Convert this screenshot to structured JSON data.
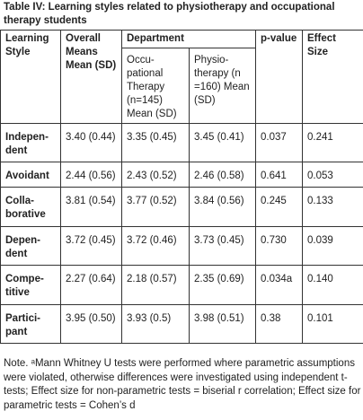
{
  "title": "Table IV: Learning styles related to physiotherapy and occupational therapy students",
  "headers": {
    "learning_style": "Learning Style",
    "overall": "Overall Means Mean (SD)",
    "department": "Department",
    "occupational": "Occu-pational Therapy (n=145) Mean (SD)",
    "physiotherapy": "Physio-therapy (n =160) Mean (SD)",
    "p_value": "p-value",
    "effect_size": "Effect Size"
  },
  "rows": [
    {
      "style": "Indepen-dent",
      "overall": "3.40 (0.44)",
      "ot": "3.35 (0.45)",
      "pt": "3.45 (0.41)",
      "p": "0.037",
      "es": "0.241"
    },
    {
      "style": "Avoidant",
      "overall": "2.44 (0.56)",
      "ot": "2.43 (0.52)",
      "pt": "2.46 (0.58)",
      "p": "0.641",
      "es": "0.053"
    },
    {
      "style": "Colla-borative",
      "overall": "3.81 (0.54)",
      "ot": "3.77 (0.52)",
      "pt": "3.84 (0.56)",
      "p": "0.245",
      "es": "0.133"
    },
    {
      "style": "Depen-dent",
      "overall": "3.72 (0.45)",
      "ot": "3.72 (0.46)",
      "pt": "3.73 (0.45)",
      "p": "0.730",
      "es": "0.039"
    },
    {
      "style": "Compe-titive",
      "overall": "2.27 (0.64)",
      "ot": "2.18 (0.57)",
      "pt": "2.35 (0.69)",
      "p": "0.034a",
      "es": "0.140"
    },
    {
      "style": "Partici-pant",
      "overall": "3.95 (0.50)",
      "ot": "3.93 (0.5)",
      "pt": "3.98 (0.51)",
      "p": "0.38",
      "es": "0.101"
    }
  ],
  "note": "Note. ᵃMann Whitney U tests were performed where parametric assumptions were violated, otherwise differences were investigated using independent t-tests; Effect size for non-parametric tests = biserial r correlation; Effect size for parametric tests = Cohen’s d"
}
